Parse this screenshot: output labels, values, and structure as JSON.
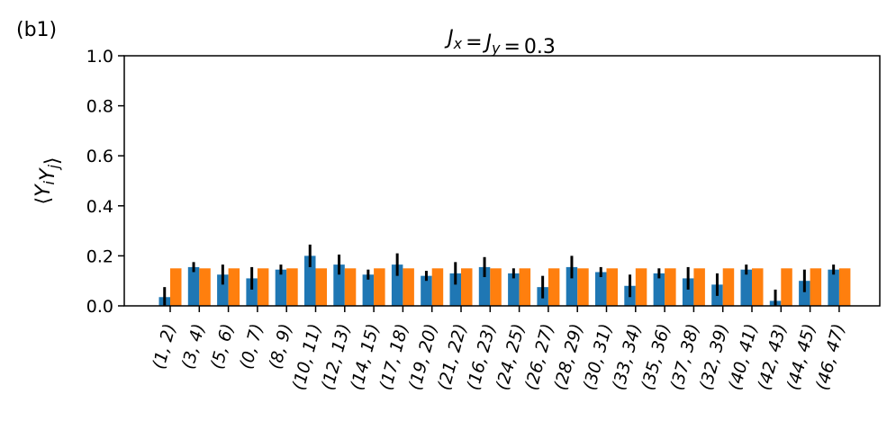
{
  "panel_label": "(b1)",
  "chart_data": {
    "type": "bar",
    "title": "J_x = J_y = 0.3",
    "ylabel": "⟨Y_i Y_j⟩",
    "xlabel": "",
    "ylim": [
      0,
      1.0
    ],
    "yticks": [
      "0.0",
      "0.2",
      "0.4",
      "0.6",
      "0.8",
      "1.0"
    ],
    "grid": false,
    "categories": [
      "(1, 2)",
      "(3, 4)",
      "(5, 6)",
      "(0, 7)",
      "(8, 9)",
      "(10, 11)",
      "(12, 13)",
      "(14, 15)",
      "(17, 18)",
      "(19, 20)",
      "(21, 22)",
      "(16, 23)",
      "(24, 25)",
      "(26, 27)",
      "(28, 29)",
      "(30, 31)",
      "(33, 34)",
      "(35, 36)",
      "(37, 38)",
      "(32, 39)",
      "(40, 41)",
      "(42, 43)",
      "(44, 45)",
      "(46, 47)"
    ],
    "series": [
      {
        "color": "#1f77b4",
        "values": [
          0.035,
          0.155,
          0.125,
          0.11,
          0.145,
          0.2,
          0.165,
          0.125,
          0.165,
          0.12,
          0.13,
          0.155,
          0.13,
          0.075,
          0.155,
          0.135,
          0.08,
          0.13,
          0.11,
          0.085,
          0.145,
          0.02,
          0.1,
          0.145
        ],
        "errors": [
          0.04,
          0.02,
          0.04,
          0.045,
          0.02,
          0.045,
          0.04,
          0.02,
          0.045,
          0.02,
          0.045,
          0.04,
          0.02,
          0.045,
          0.045,
          0.02,
          0.045,
          0.02,
          0.045,
          0.045,
          0.02,
          0.045,
          0.045,
          0.02
        ]
      },
      {
        "color": "#ff7f0e",
        "values": [
          0.15,
          0.15,
          0.15,
          0.15,
          0.15,
          0.15,
          0.15,
          0.15,
          0.15,
          0.15,
          0.15,
          0.15,
          0.15,
          0.15,
          0.15,
          0.15,
          0.15,
          0.15,
          0.15,
          0.15,
          0.15,
          0.15,
          0.15,
          0.15
        ]
      }
    ]
  }
}
